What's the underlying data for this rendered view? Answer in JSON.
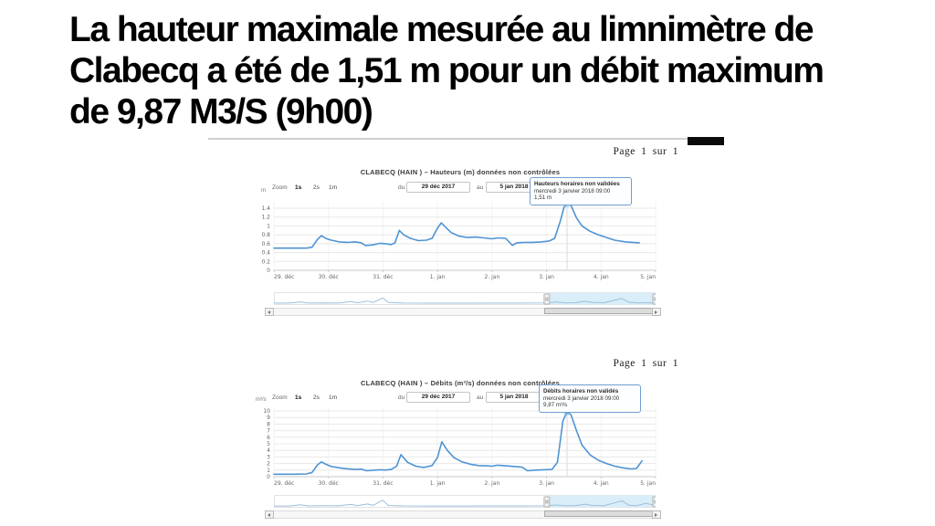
{
  "slide": {
    "title": "La hauteur maximale mesurée au limnimètre de\nClabecq a été de 1,51 m pour un débit maximum\nde 9,87 M3/S (9h00)"
  },
  "colors": {
    "series_line": "#4e94d4",
    "nav_line": "#9dbeda",
    "nav_highlight": "#d9eef9",
    "tooltip_border": "#6f9fd0",
    "gridline": "#e8e8e8",
    "axis_line": "#c9c9c9"
  },
  "chart_data": [
    {
      "type": "line",
      "page_label": "Page 1 sur 1",
      "title": "CLABECQ (HAIN ) – Hauteurs (m) données non contrôlées",
      "unit": "m",
      "ylabel": "m",
      "xlabel": "",
      "ylim": [
        0,
        1.55
      ],
      "yticks": [
        0,
        0.2,
        0.4,
        0.6,
        0.8,
        1,
        1.2,
        1.4
      ],
      "ytick_labels": [
        "0",
        "0.2",
        "0.4",
        "0.6",
        "0.8",
        "1",
        "1.2",
        "1.4"
      ],
      "xtick_days": [
        0,
        1,
        2,
        3,
        4,
        5,
        6,
        7
      ],
      "xtick_labels": [
        "29. déc",
        "30. déc",
        "31. déc",
        "1. jan",
        "2. jan",
        "3. jan",
        "4. jan",
        "5. jan"
      ],
      "zoom_controls": {
        "label": "Zoom",
        "options": [
          "1s",
          "2s",
          "1m"
        ],
        "active": "1s"
      },
      "date_range": {
        "from_label": "du",
        "from": "29 déc 2017",
        "to_label": "au",
        "to": "5 jan 2018"
      },
      "tooltip": {
        "line1": "Hauteurs horaires non validées",
        "line2": "mercredi 3 janvier 2018 09:00",
        "line3": "1,51 m"
      },
      "peak": {
        "day": 5.375,
        "value": 1.51
      },
      "series": [
        [
          0,
          0.5
        ],
        [
          0.35,
          0.5
        ],
        [
          0.6,
          0.5
        ],
        [
          0.7,
          0.52
        ],
        [
          0.8,
          0.7
        ],
        [
          0.87,
          0.78
        ],
        [
          0.95,
          0.72
        ],
        [
          1.05,
          0.68
        ],
        [
          1.2,
          0.64
        ],
        [
          1.35,
          0.63
        ],
        [
          1.5,
          0.64
        ],
        [
          1.6,
          0.62
        ],
        [
          1.68,
          0.56
        ],
        [
          1.8,
          0.57
        ],
        [
          1.95,
          0.61
        ],
        [
          2.05,
          0.6
        ],
        [
          2.15,
          0.58
        ],
        [
          2.22,
          0.62
        ],
        [
          2.3,
          0.9
        ],
        [
          2.38,
          0.8
        ],
        [
          2.5,
          0.72
        ],
        [
          2.65,
          0.67
        ],
        [
          2.8,
          0.68
        ],
        [
          2.9,
          0.72
        ],
        [
          3.0,
          0.95
        ],
        [
          3.07,
          1.07
        ],
        [
          3.15,
          0.97
        ],
        [
          3.25,
          0.85
        ],
        [
          3.4,
          0.77
        ],
        [
          3.55,
          0.74
        ],
        [
          3.7,
          0.75
        ],
        [
          3.85,
          0.73
        ],
        [
          4.0,
          0.71
        ],
        [
          4.1,
          0.73
        ],
        [
          4.25,
          0.72
        ],
        [
          4.33,
          0.62
        ],
        [
          4.37,
          0.56
        ],
        [
          4.45,
          0.62
        ],
        [
          4.6,
          0.63
        ],
        [
          4.75,
          0.63
        ],
        [
          4.9,
          0.64
        ],
        [
          5.05,
          0.66
        ],
        [
          5.15,
          0.72
        ],
        [
          5.25,
          1.1
        ],
        [
          5.32,
          1.42
        ],
        [
          5.375,
          1.51
        ],
        [
          5.45,
          1.46
        ],
        [
          5.55,
          1.18
        ],
        [
          5.65,
          1.0
        ],
        [
          5.8,
          0.88
        ],
        [
          5.95,
          0.8
        ],
        [
          6.1,
          0.74
        ],
        [
          6.25,
          0.68
        ],
        [
          6.45,
          0.64
        ],
        [
          6.7,
          0.62
        ]
      ],
      "nav_highlight": [
        0.715,
        1.0
      ],
      "navigator": [
        [
          0,
          0.1
        ],
        [
          0.04,
          0.1
        ],
        [
          0.07,
          0.22
        ],
        [
          0.09,
          0.1
        ],
        [
          0.13,
          0.12
        ],
        [
          0.17,
          0.1
        ],
        [
          0.2,
          0.25
        ],
        [
          0.22,
          0.14
        ],
        [
          0.245,
          0.3
        ],
        [
          0.26,
          0.16
        ],
        [
          0.285,
          0.62
        ],
        [
          0.3,
          0.15
        ],
        [
          0.34,
          0.1
        ],
        [
          0.42,
          0.09
        ],
        [
          0.5,
          0.09
        ],
        [
          0.58,
          0.1
        ],
        [
          0.65,
          0.1
        ],
        [
          0.715,
          0.12
        ],
        [
          0.74,
          0.2
        ],
        [
          0.76,
          0.13
        ],
        [
          0.79,
          0.14
        ],
        [
          0.815,
          0.28
        ],
        [
          0.835,
          0.16
        ],
        [
          0.865,
          0.14
        ],
        [
          0.912,
          0.55
        ],
        [
          0.93,
          0.18
        ],
        [
          0.95,
          0.13
        ],
        [
          0.97,
          0.13
        ],
        [
          1.0,
          0.12
        ]
      ]
    },
    {
      "type": "line",
      "page_label": "Page 1 sur 1",
      "title": "CLABECQ (HAIN ) – Débits (m³/s) données non contrôlées",
      "unit": "m³/s",
      "ylabel": "m³/s",
      "xlabel": "",
      "ylim": [
        0,
        10.5
      ],
      "yticks": [
        0,
        1,
        2,
        3,
        4,
        5,
        6,
        7,
        8,
        9,
        10
      ],
      "ytick_labels": [
        "0",
        "1",
        "2",
        "3",
        "4",
        "5",
        "6",
        "7",
        "8",
        "9",
        "10"
      ],
      "xtick_days": [
        0,
        1,
        2,
        3,
        4,
        5,
        6,
        7
      ],
      "xtick_labels": [
        "29. déc",
        "30. déc",
        "31. déc",
        "1. jan",
        "2. jan",
        "3. jan",
        "4. jan",
        "5. jan"
      ],
      "zoom_controls": {
        "label": "Zoom",
        "options": [
          "1s",
          "2s",
          "1m"
        ],
        "active": "1s"
      },
      "date_range": {
        "from_label": "du",
        "from": "29 déc 2017",
        "to_label": "au",
        "to": "5 jan 2018"
      },
      "tooltip": {
        "line1": "Débits horaires non validés",
        "line2": "mercredi 3 janvier 2018 09:00",
        "line3": "9,87 m³/s"
      },
      "peak": {
        "day": 5.375,
        "value": 9.87
      },
      "series": [
        [
          0,
          0.38
        ],
        [
          0.35,
          0.38
        ],
        [
          0.6,
          0.42
        ],
        [
          0.7,
          0.65
        ],
        [
          0.8,
          1.8
        ],
        [
          0.87,
          2.25
        ],
        [
          0.95,
          1.9
        ],
        [
          1.05,
          1.55
        ],
        [
          1.2,
          1.35
        ],
        [
          1.35,
          1.2
        ],
        [
          1.5,
          1.1
        ],
        [
          1.6,
          1.15
        ],
        [
          1.7,
          0.9
        ],
        [
          1.85,
          1.0
        ],
        [
          1.95,
          1.05
        ],
        [
          2.05,
          1.02
        ],
        [
          2.15,
          1.1
        ],
        [
          2.25,
          1.6
        ],
        [
          2.33,
          3.35
        ],
        [
          2.45,
          2.2
        ],
        [
          2.6,
          1.6
        ],
        [
          2.75,
          1.4
        ],
        [
          2.9,
          1.7
        ],
        [
          3.0,
          2.9
        ],
        [
          3.08,
          5.3
        ],
        [
          3.18,
          4.0
        ],
        [
          3.3,
          2.9
        ],
        [
          3.45,
          2.25
        ],
        [
          3.6,
          1.9
        ],
        [
          3.75,
          1.7
        ],
        [
          3.9,
          1.65
        ],
        [
          4.0,
          1.6
        ],
        [
          4.1,
          1.75
        ],
        [
          4.25,
          1.65
        ],
        [
          4.4,
          1.55
        ],
        [
          4.55,
          1.45
        ],
        [
          4.65,
          0.9
        ],
        [
          4.8,
          1.0
        ],
        [
          4.95,
          1.05
        ],
        [
          5.1,
          1.1
        ],
        [
          5.2,
          2.2
        ],
        [
          5.3,
          8.5
        ],
        [
          5.375,
          9.87
        ],
        [
          5.45,
          9.4
        ],
        [
          5.55,
          7.0
        ],
        [
          5.65,
          4.8
        ],
        [
          5.8,
          3.3
        ],
        [
          5.95,
          2.5
        ],
        [
          6.1,
          2.0
        ],
        [
          6.25,
          1.6
        ],
        [
          6.4,
          1.35
        ],
        [
          6.55,
          1.18
        ],
        [
          6.65,
          1.25
        ],
        [
          6.75,
          2.4
        ]
      ],
      "nav_highlight": [
        0.715,
        1.0
      ],
      "navigator": [
        [
          0,
          0.08
        ],
        [
          0.04,
          0.08
        ],
        [
          0.07,
          0.2
        ],
        [
          0.09,
          0.09
        ],
        [
          0.13,
          0.11
        ],
        [
          0.17,
          0.1
        ],
        [
          0.2,
          0.24
        ],
        [
          0.22,
          0.13
        ],
        [
          0.245,
          0.28
        ],
        [
          0.26,
          0.15
        ],
        [
          0.285,
          0.65
        ],
        [
          0.3,
          0.14
        ],
        [
          0.34,
          0.09
        ],
        [
          0.42,
          0.08
        ],
        [
          0.5,
          0.08
        ],
        [
          0.58,
          0.09
        ],
        [
          0.65,
          0.09
        ],
        [
          0.715,
          0.1
        ],
        [
          0.74,
          0.18
        ],
        [
          0.76,
          0.12
        ],
        [
          0.79,
          0.12
        ],
        [
          0.815,
          0.26
        ],
        [
          0.835,
          0.14
        ],
        [
          0.865,
          0.12
        ],
        [
          0.912,
          0.6
        ],
        [
          0.93,
          0.16
        ],
        [
          0.95,
          0.12
        ],
        [
          0.975,
          0.35
        ],
        [
          1.0,
          0.12
        ]
      ]
    }
  ]
}
